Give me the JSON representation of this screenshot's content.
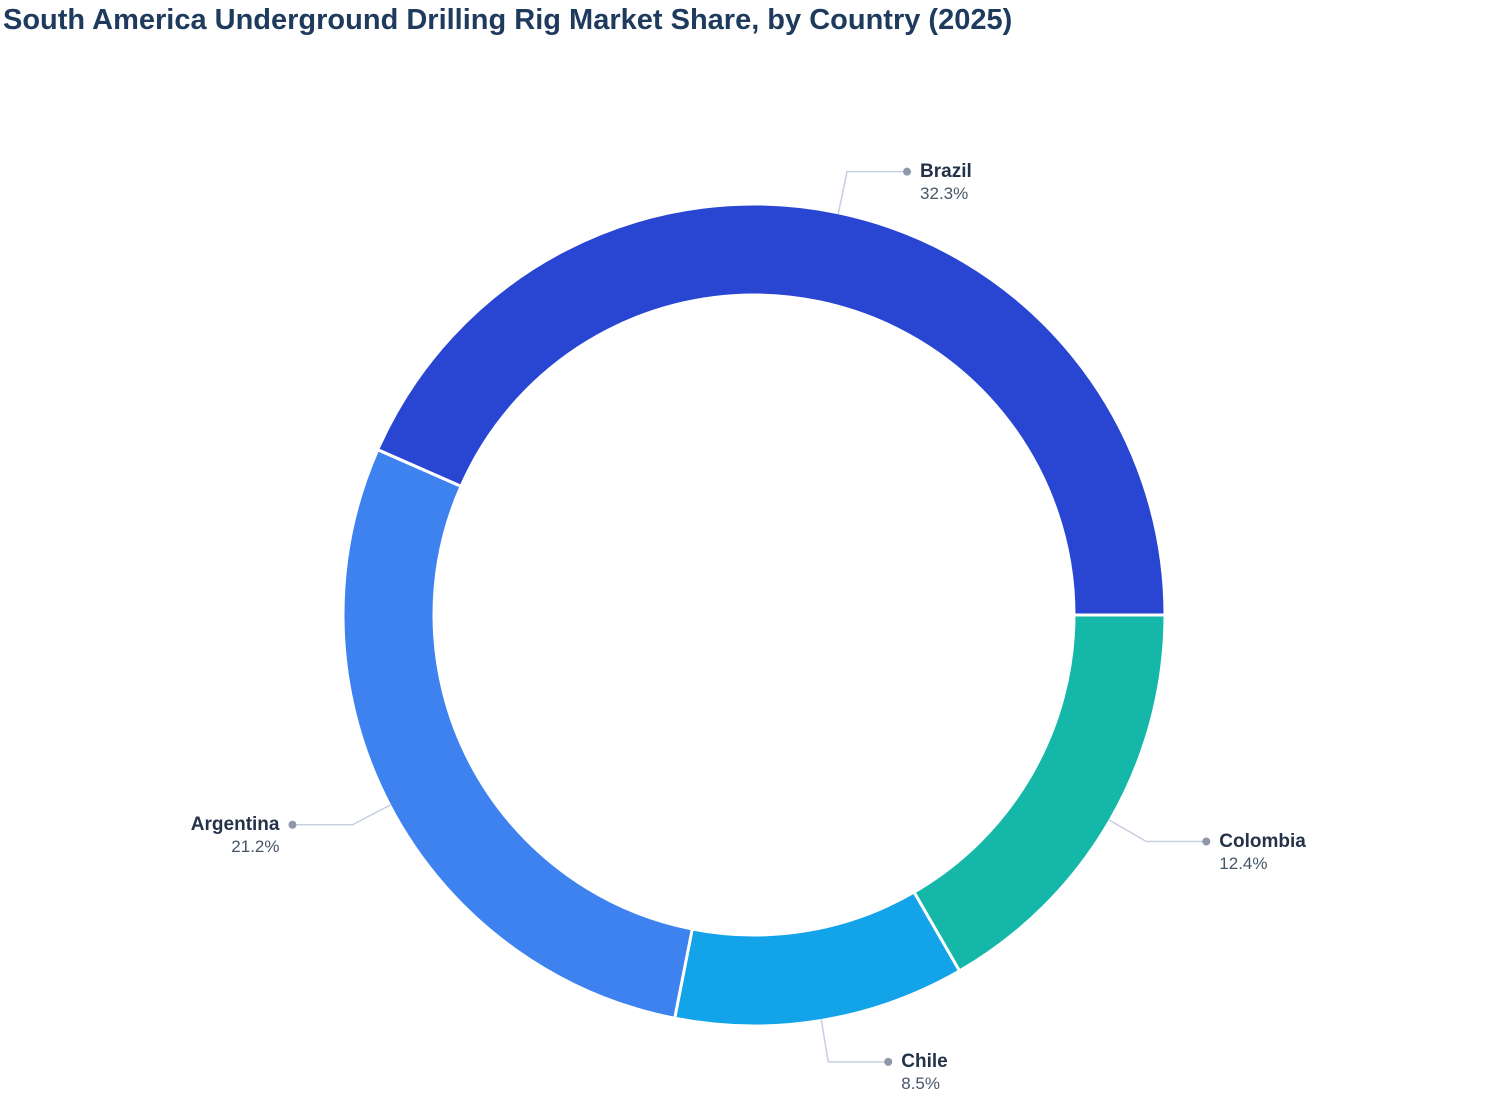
{
  "title": "South America Underground Drilling Rig Market Share, by Country (2025)",
  "chart_data": {
    "type": "pie",
    "subtype": "donut",
    "title": "South America Underground Drilling Rig Market Share, by Country (2025)",
    "unit": "%",
    "slices": [
      {
        "label": "Brazil",
        "value": 32.3,
        "display": "32.3%",
        "color": "#2946D2"
      },
      {
        "label": "Colombia",
        "value": 12.4,
        "display": "12.4%",
        "color": "#15B7A8"
      },
      {
        "label": "Chile",
        "value": 8.5,
        "display": "8.5%",
        "color": "#12A3E8"
      },
      {
        "label": "Argentina",
        "value": 21.2,
        "display": "21.2%",
        "color": "#3E82F0"
      }
    ],
    "layout": {
      "legend": "none",
      "labels": "outside with leader lines and dots",
      "hole_ratio": 0.78,
      "angle_rule": "slice angle proportional to value / sum(values); first slice ends at 3 o'clock; slices drawn clockwise in listed order"
    }
  },
  "style": {
    "title_color": "#1E3A5C",
    "label_name_color": "#253349",
    "label_value_color": "#475569",
    "leader_line_color": "#C7CFE0",
    "leader_dot_color": "#8F98AB",
    "slice_border_color": "#FFFFFF"
  }
}
